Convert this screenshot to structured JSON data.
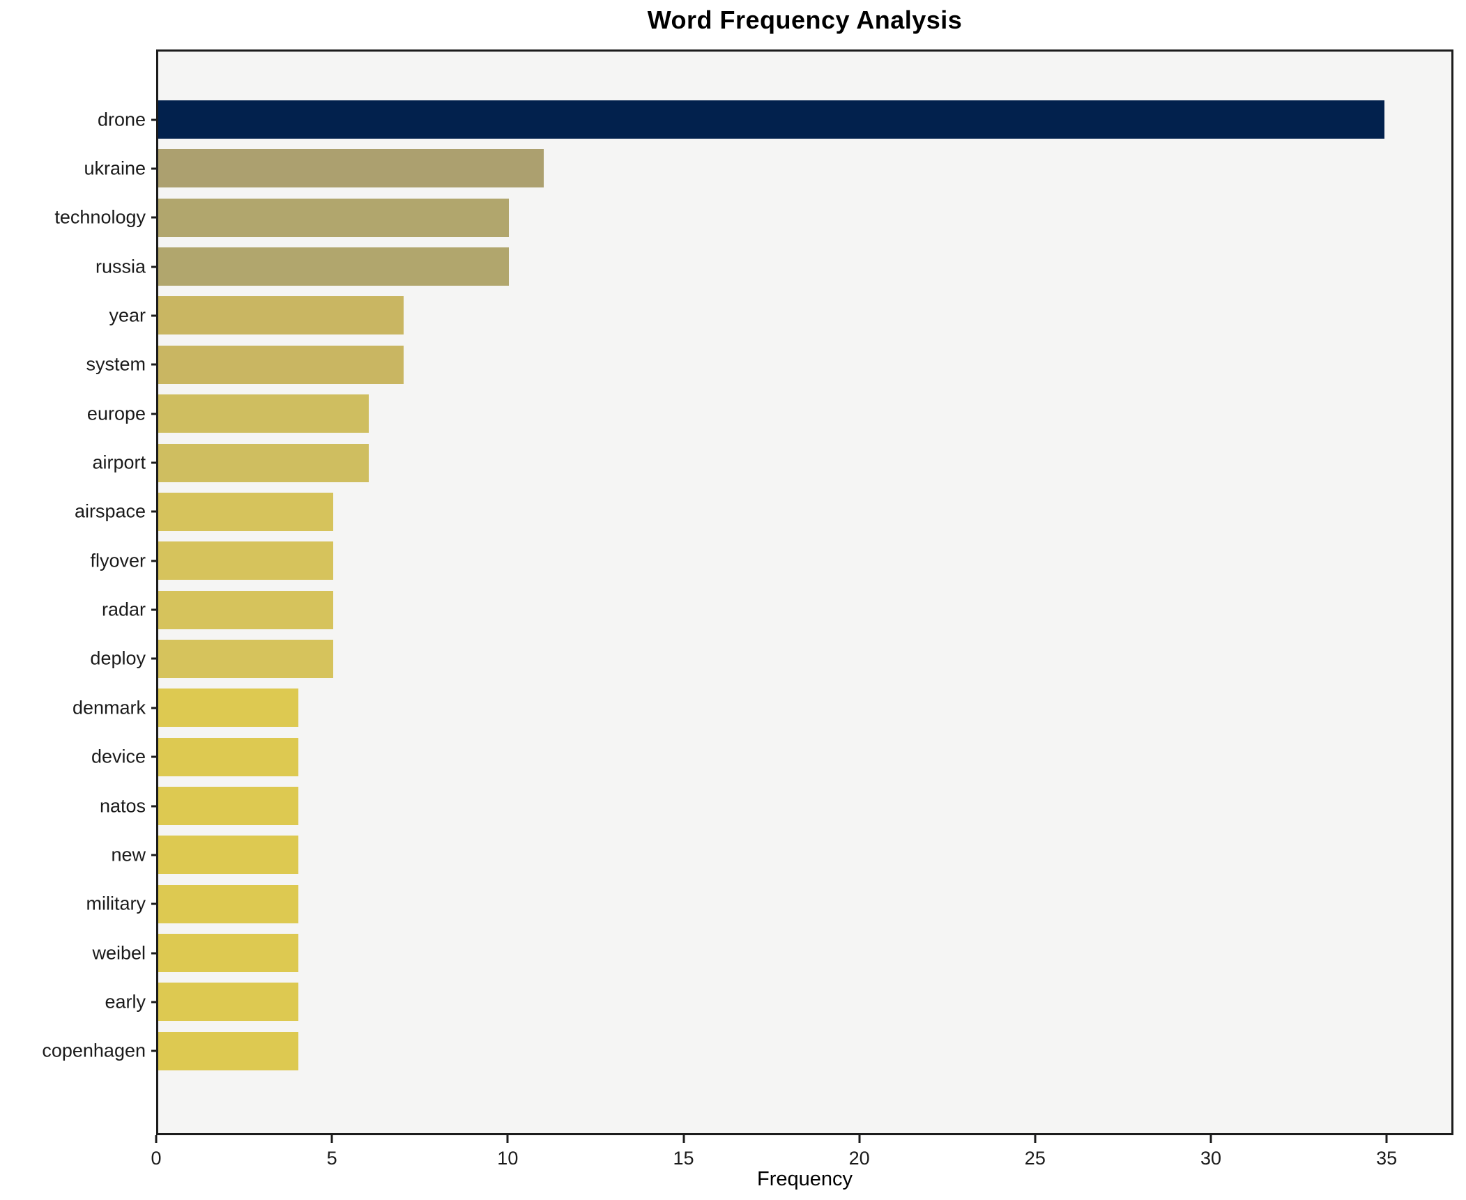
{
  "chart_data": {
    "type": "bar",
    "orientation": "horizontal",
    "title": "Word Frequency Analysis",
    "xlabel": "Frequency",
    "ylabel": "",
    "grid": false,
    "legend": false,
    "xlim": [
      0,
      36.9
    ],
    "xticks": [
      0,
      5,
      10,
      15,
      20,
      25,
      30,
      35
    ],
    "categories": [
      "drone",
      "ukraine",
      "technology",
      "russia",
      "year",
      "system",
      "europe",
      "airport",
      "airspace",
      "flyover",
      "radar",
      "deploy",
      "denmark",
      "device",
      "natos",
      "new",
      "military",
      "weibel",
      "early",
      "copenhagen"
    ],
    "values": [
      35,
      11,
      10,
      10,
      7,
      7,
      6,
      6,
      5,
      5,
      5,
      5,
      4,
      4,
      4,
      4,
      4,
      4,
      4,
      4
    ],
    "bar_colors": [
      "#02214d",
      "#aca06f",
      "#b1a66d",
      "#b1a66d",
      "#c9b662",
      "#c9b662",
      "#cfbe60",
      "#cfbe60",
      "#d6c35c",
      "#d6c35c",
      "#d6c35c",
      "#d6c35c",
      "#ddc951",
      "#ddc951",
      "#ddc951",
      "#ddc951",
      "#ddc951",
      "#ddc951",
      "#ddc951",
      "#ddc951"
    ],
    "colors": {
      "max_bar": "#02214d",
      "min_bar": "#ddc951",
      "plot_background": "#f5f5f4",
      "figure_background": "#ffffff",
      "spine": "#1c1c1c",
      "text": "#000000"
    }
  }
}
